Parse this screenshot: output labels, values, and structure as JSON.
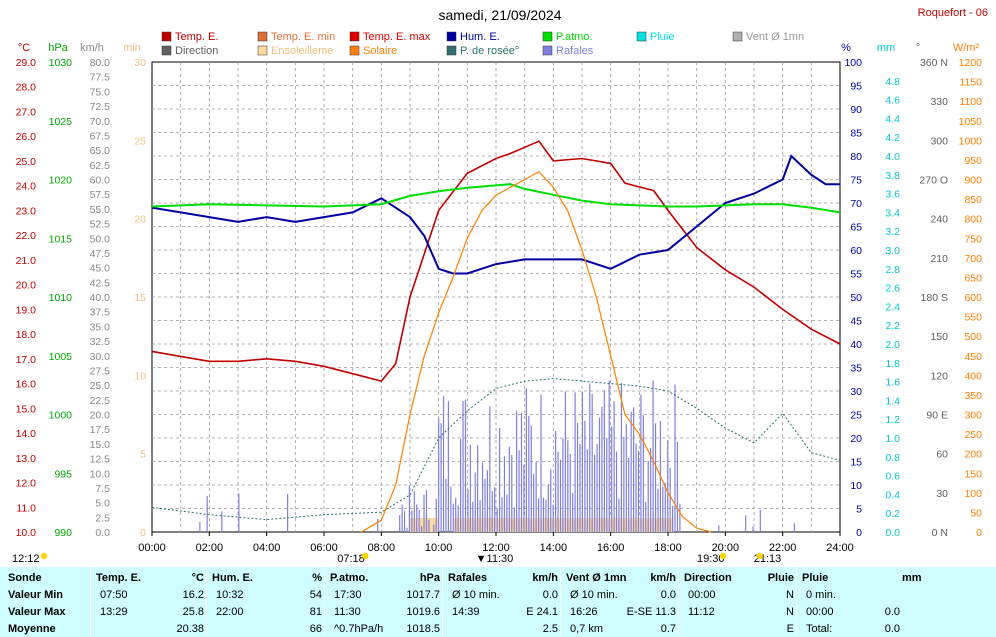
{
  "header": {
    "title": "samedi, 21/09/2024",
    "station": "Roquefort - 06"
  },
  "legend": [
    {
      "label": "Temp. E.",
      "color": "#c00000"
    },
    {
      "label": "Temp. E. min",
      "color": "#e0703a"
    },
    {
      "label": "Temp. E. max",
      "color": "#e00000"
    },
    {
      "label": "Hum. E.",
      "color": "#0000a0"
    },
    {
      "label": "P.atmo.",
      "color": "#00dd00"
    },
    {
      "label": "Pluie",
      "color": "#00e0e0"
    },
    {
      "label": "Vent Ø 1mn",
      "color": "#b0b0b0"
    },
    {
      "label": "Direction",
      "color": "#606060"
    },
    {
      "label": "Ensoleilleme",
      "color": "#ffd9a0"
    },
    {
      "label": "Solaire",
      "color": "#ff8000"
    },
    {
      "label": "P. de rosée°",
      "color": "#2f6f6f"
    },
    {
      "label": "Rafales",
      "color": "#8080e0"
    }
  ],
  "axis_units": {
    "temp": "°C",
    "hpa": "hPa",
    "kmh": "km/h",
    "min": "min",
    "pct": "%",
    "mm": "mm",
    "deg": "°",
    "wm2": "W/m²"
  },
  "sun_times": {
    "left": "12:12",
    "sunrise": "07:18",
    "noon": "11:30",
    "sunset": "19:30",
    "late": "21:13"
  },
  "chart_data": {
    "type": "line",
    "title": "samedi, 21/09/2024",
    "x_ticks": [
      "00:00",
      "02:00",
      "04:00",
      "06:00",
      "08:00",
      "10:00",
      "12:00",
      "14:00",
      "16:00",
      "18:00",
      "20:00",
      "22:00",
      "24:00"
    ],
    "axes": {
      "temp_c": {
        "range": [
          10,
          29
        ],
        "ticks": [
          "29.0",
          "28.0",
          "27.0",
          "26.0",
          "25.0",
          "24.0",
          "23.0",
          "22.0",
          "21.0",
          "20.0",
          "19.0",
          "18.0",
          "17.0",
          "16.0",
          "15.0",
          "14.0",
          "13.0",
          "12.0",
          "11.0",
          "10.0"
        ]
      },
      "pressure_hpa": {
        "range": [
          990,
          1030
        ],
        "ticks": [
          "1030",
          "1025",
          "1020",
          "1015",
          "1010",
          "1005",
          "1000",
          "995",
          "990"
        ]
      },
      "wind_kmh": {
        "range": [
          0,
          80
        ],
        "ticks": [
          "80.0",
          "77.5",
          "75.0",
          "72.5",
          "70.0",
          "67.5",
          "65.0",
          "62.5",
          "60.0",
          "57.5",
          "55.0",
          "52.5",
          "50.0",
          "47.5",
          "45.0",
          "42.5",
          "40.0",
          "37.5",
          "35.0",
          "32.5",
          "30.0",
          "27.5",
          "25.0",
          "22.5",
          "20.0",
          "17.5",
          "15.0",
          "12.5",
          "10.0",
          "7.5",
          "5.0",
          "2.5",
          "0.0"
        ]
      },
      "sun_min": {
        "range": [
          0,
          30
        ],
        "ticks": [
          "30",
          "25",
          "20",
          "15",
          "10",
          "5",
          "0"
        ]
      },
      "humidity_pct": {
        "range": [
          0,
          100
        ],
        "ticks": [
          "100",
          "95",
          "90",
          "85",
          "80",
          "75",
          "70",
          "65",
          "60",
          "55",
          "50",
          "45",
          "40",
          "35",
          "30",
          "25",
          "20",
          "15",
          "10",
          "5",
          "0"
        ]
      },
      "rain_mm": {
        "range": [
          0,
          5
        ],
        "ticks": [
          "4.8",
          "4.6",
          "4.4",
          "4.2",
          "4.0",
          "3.8",
          "3.6",
          "3.4",
          "3.2",
          "3.0",
          "2.8",
          "2.6",
          "2.4",
          "2.2",
          "2.0",
          "1.8",
          "1.6",
          "1.4",
          "1.2",
          "1.0",
          "0.8",
          "0.6",
          "0.4",
          "0.2",
          "0.0"
        ]
      },
      "direction_deg": {
        "range": [
          0,
          360
        ],
        "ticks": [
          "360 N",
          "330",
          "300",
          "270 O",
          "240",
          "210",
          "180 S",
          "150",
          "120",
          "90 E",
          "60",
          "30",
          "0 N"
        ]
      },
      "solar_wm2": {
        "range": [
          0,
          1200
        ],
        "ticks": [
          "1200",
          "1150",
          "1100",
          "1050",
          "1000",
          "950",
          "900",
          "850",
          "800",
          "750",
          "700",
          "650",
          "600",
          "550",
          "500",
          "450",
          "400",
          "350",
          "300",
          "250",
          "200",
          "150",
          "100",
          "50",
          "0"
        ]
      }
    },
    "series": [
      {
        "name": "Temp. E.",
        "axis": "temp_c",
        "x": [
          0,
          1,
          2,
          3,
          4,
          5,
          6,
          7,
          8,
          8.5,
          9,
          10,
          11,
          12,
          12.5,
          13.5,
          14,
          15,
          16,
          16.5,
          17.5,
          18,
          19,
          20,
          21,
          22,
          23,
          24
        ],
        "y": [
          17.3,
          17.1,
          16.9,
          16.9,
          17.0,
          16.9,
          16.7,
          16.4,
          16.1,
          16.8,
          19.5,
          23.0,
          24.5,
          25.1,
          25.3,
          25.8,
          25.0,
          25.1,
          24.9,
          24.1,
          23.8,
          23.0,
          21.5,
          20.6,
          19.9,
          19.0,
          18.2,
          17.6
        ]
      },
      {
        "name": "Hum. E.",
        "axis": "humidity_pct",
        "x": [
          0,
          1,
          2,
          3,
          4,
          5,
          6,
          7,
          8,
          9,
          9.5,
          10,
          10.5,
          11,
          12,
          13,
          14,
          15,
          16,
          17,
          18,
          19,
          20,
          21,
          22,
          22.3,
          23,
          23.5,
          24
        ],
        "y": [
          69,
          68,
          67,
          66,
          67,
          66,
          67,
          68,
          71,
          67,
          63,
          56,
          55,
          55,
          57,
          58,
          58,
          58,
          56,
          59,
          60,
          65,
          70,
          72,
          75,
          80,
          76,
          74,
          74
        ]
      },
      {
        "name": "P.atmo.",
        "axis": "pressure_hpa",
        "x": [
          0,
          2,
          4,
          6,
          8,
          9,
          10,
          11,
          12,
          12.5,
          13,
          14,
          15,
          16,
          17,
          18,
          19,
          20,
          21,
          22,
          23,
          24
        ],
        "y": [
          1017.7,
          1017.9,
          1017.8,
          1017.7,
          1017.9,
          1018.6,
          1019.0,
          1019.3,
          1019.5,
          1019.6,
          1019.2,
          1018.7,
          1018.2,
          1017.9,
          1017.8,
          1017.7,
          1017.7,
          1017.8,
          1017.9,
          1017.9,
          1017.6,
          1017.2
        ]
      },
      {
        "name": "P. de rosée°",
        "axis": "temp_c",
        "x": [
          0,
          2,
          4,
          6,
          8,
          9,
          10,
          11,
          12,
          13,
          14,
          15,
          16,
          17,
          18,
          19,
          20,
          21,
          22,
          23,
          24
        ],
        "y": [
          11.0,
          10.7,
          10.5,
          10.7,
          10.8,
          11.5,
          13.8,
          14.9,
          15.8,
          16.1,
          16.2,
          16.1,
          16.0,
          15.9,
          15.7,
          15.0,
          14.2,
          13.6,
          14.8,
          13.2,
          12.9
        ]
      },
      {
        "name": "Solaire",
        "axis": "solar_wm2",
        "x": [
          7.3,
          8,
          8.5,
          9,
          9.5,
          10,
          10.5,
          11,
          11.5,
          12,
          12.5,
          13,
          13.5,
          14,
          14.5,
          15,
          15.5,
          16,
          16.5,
          17,
          17.5,
          18,
          18.5,
          19,
          19.5
        ],
        "y": [
          0,
          30,
          120,
          300,
          450,
          560,
          650,
          750,
          820,
          860,
          880,
          900,
          920,
          880,
          820,
          720,
          600,
          450,
          300,
          250,
          180,
          100,
          40,
          10,
          0
        ]
      }
    ],
    "grid": true,
    "legend_position": "top"
  },
  "stats": {
    "headers": [
      "Sonde",
      "Temp. E.",
      "°C",
      "Hum. E.",
      "%",
      "P.atmo.",
      "hPa",
      "Rafales",
      "km/h",
      "Vent Ø 1mn",
      "km/h",
      "Direction",
      "Pluie",
      "mm"
    ],
    "rows": [
      {
        "label": "Valeur Min",
        "cells": [
          "07:50",
          "16.2",
          "10:32",
          "54",
          "17:30",
          "1017.7",
          "Ø 10 min.",
          "0.0",
          "Ø 10 min.",
          "0.0",
          "00:00",
          "N",
          "0 min.",
          ""
        ]
      },
      {
        "label": "Valeur Max",
        "cells": [
          "13:29",
          "25.8",
          "22:00",
          "81",
          "11:30",
          "1019.6",
          "14:39",
          "E 24.1",
          "16:26",
          "E-SE 11.3",
          "11:12",
          "N",
          "00:00",
          "0.0"
        ]
      },
      {
        "label": "Moyenne",
        "cells": [
          "",
          "20.38",
          "",
          "66",
          "^0.7hPa/h",
          "1018.5",
          "",
          "2.5",
          "0,7 km",
          "0.7",
          "",
          "E",
          "Total:",
          "0.0"
        ]
      }
    ]
  }
}
